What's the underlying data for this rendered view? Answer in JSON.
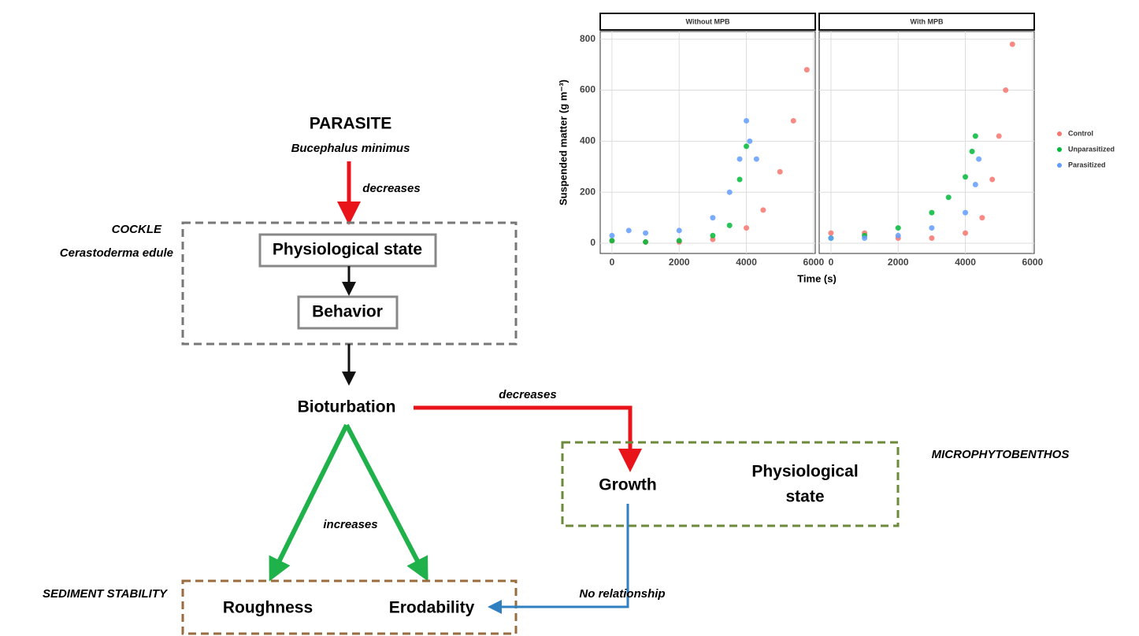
{
  "parasite": {
    "title": "PARASITE",
    "species": "Bucephalus minimus",
    "effect": "decreases"
  },
  "cockle": {
    "title": "COCKLE",
    "species": "Cerastoderma edule",
    "state": "Physiological state",
    "behavior": "Behavior"
  },
  "bioturbation": {
    "label": "Bioturbation",
    "effect_mpb": "decreases",
    "effect_sediment": "increases"
  },
  "microphytobenthos": {
    "title": "MICROPHYTOBENTHOS",
    "growth": "Growth",
    "state_lines": [
      "Physiological",
      "state"
    ],
    "effect": "No relationship"
  },
  "sediment": {
    "title": "SEDIMENT STABILITY",
    "roughness": "Roughness",
    "erodability": "Erodability"
  },
  "chart_data": {
    "type": "scatter",
    "x_label": "Time (s)",
    "y_label": "Suspended matter (g m⁻³)",
    "xlim": [
      -350,
      6050
    ],
    "ylim": [
      -40,
      830
    ],
    "xticks": [
      0,
      2000,
      4000,
      6000
    ],
    "yticks": [
      0,
      200,
      400,
      600,
      800
    ],
    "grid": true,
    "legend": "right",
    "series": [
      {
        "name": "Control",
        "color": "#F8766D"
      },
      {
        "name": "Unparasitized",
        "color": "#00BA38"
      },
      {
        "name": "Parasitized",
        "color": "#619CFF"
      }
    ],
    "panels": [
      {
        "title": "Without MPB",
        "data": [
          {
            "x": [
              0,
              1000,
              2000,
              3000,
              4000,
              4500,
              5000,
              5400,
              5800
            ],
            "y": [
              10,
              5,
              5,
              15,
              60,
              130,
              280,
              480,
              680
            ]
          },
          {
            "x": [
              0,
              1000,
              2000,
              3000,
              3500,
              3800,
              4000
            ],
            "y": [
              10,
              5,
              10,
              30,
              70,
              250,
              380
            ]
          },
          {
            "x": [
              0,
              500,
              1000,
              2000,
              3000,
              3500,
              3800,
              4000,
              4100,
              4300
            ],
            "y": [
              30,
              50,
              40,
              50,
              100,
              200,
              330,
              480,
              400,
              330
            ]
          }
        ]
      },
      {
        "title": "With MPB",
        "data": [
          {
            "x": [
              0,
              1000,
              2000,
              3000,
              4000,
              4500,
              4800,
              5000,
              5200,
              5400
            ],
            "y": [
              40,
              40,
              20,
              20,
              40,
              100,
              250,
              420,
              600,
              780
            ]
          },
          {
            "x": [
              0,
              1000,
              2000,
              3000,
              3500,
              4000,
              4200,
              4300
            ],
            "y": [
              20,
              30,
              60,
              120,
              180,
              260,
              360,
              420
            ]
          },
          {
            "x": [
              0,
              1000,
              2000,
              3000,
              4000,
              4300,
              4400
            ],
            "y": [
              20,
              20,
              30,
              60,
              120,
              230,
              330
            ]
          }
        ]
      }
    ]
  }
}
